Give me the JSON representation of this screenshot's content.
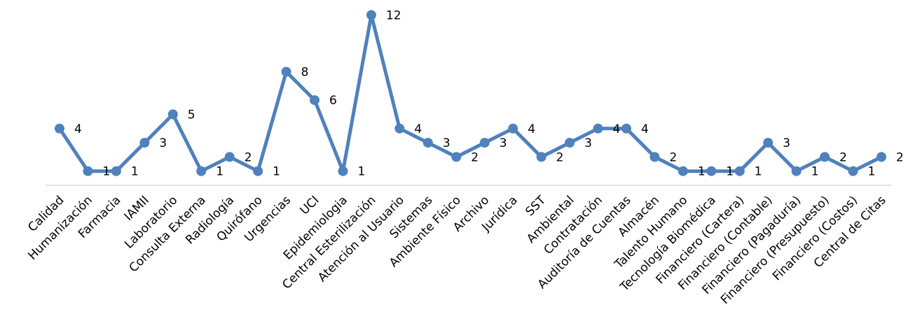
{
  "chart_data": {
    "type": "line",
    "categories": [
      "Calidad",
      "Humanización",
      "Farmacia",
      "IAMII",
      "Laboratorio",
      "Consulta Externa",
      "Radiología",
      "Quirófano",
      "Urgencias",
      "UCI",
      "Epidemiologia",
      "Central Esterilización",
      "Atención al Usuario",
      "Sistemas",
      "Ambiente Físico",
      "Archivo",
      "Jurídica",
      "SST",
      "Ambiental",
      "Contratación",
      "Auditoría de Cuentas",
      "Almacén",
      "Talento Humano",
      "Tecnología Biomédica",
      "Financiero (Cartera)",
      "Financiero (Contable)",
      "Financiero (Pagaduría)",
      "Financiero (Presupuesto)",
      "Financiero (Costos)",
      "Central de Citas"
    ],
    "series": [
      {
        "values": [
          4,
          1,
          1,
          3,
          5,
          1,
          2,
          1,
          8,
          6,
          1,
          12,
          4,
          3,
          2,
          3,
          4,
          2,
          3,
          4,
          4,
          2,
          1,
          1,
          1,
          3,
          1,
          2,
          1,
          2
        ]
      }
    ],
    "ylim": [
      0,
      12
    ],
    "grid": false,
    "legend": "none",
    "data_labels": true,
    "colors": {
      "line": "#4F81BD",
      "axis": "#D9D9D9",
      "text": "#000000"
    }
  }
}
